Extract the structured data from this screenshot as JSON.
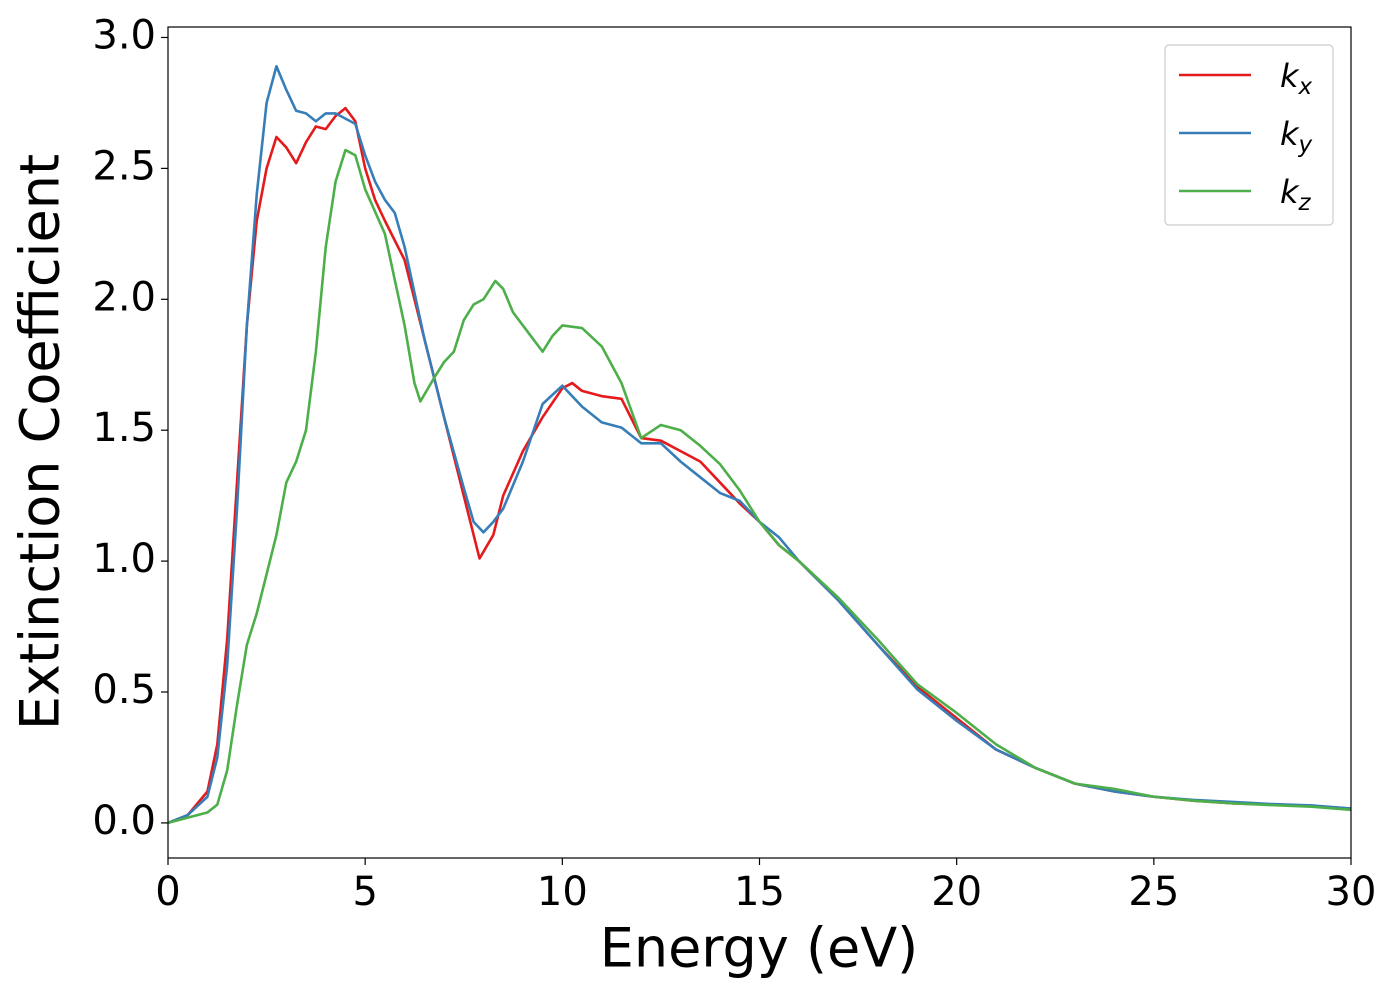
{
  "chart_data": {
    "type": "line",
    "xlabel": "Energy (eV)",
    "ylabel": "Extinction Coefficient",
    "xlim": [
      0,
      30
    ],
    "ylim": [
      -0.134,
      3.04
    ],
    "xticks": [
      0,
      5,
      10,
      15,
      20,
      25,
      30
    ],
    "yticks": [
      {
        "value": 0,
        "label": "0.0"
      },
      {
        "value": 0.5,
        "label": "0.5"
      },
      {
        "value": 1,
        "label": "1.0"
      },
      {
        "value": 1.5,
        "label": "1.5"
      },
      {
        "value": 2,
        "label": "2.0"
      },
      {
        "value": 2.5,
        "label": "2.5"
      },
      {
        "value": 3,
        "label": "3.0"
      }
    ],
    "legend": "upper right",
    "series": [
      {
        "name": "kx",
        "color": "#e41a1c",
        "x": [
          0,
          0.5,
          1,
          1.25,
          1.5,
          1.75,
          2,
          2.25,
          2.5,
          2.75,
          3,
          3.25,
          3.5,
          3.75,
          4,
          4.25,
          4.5,
          4.75,
          5,
          5.25,
          5.5,
          6,
          6.5,
          7,
          7.5,
          7.9,
          8.25,
          8.5,
          9,
          9.5,
          10,
          10.25,
          10.5,
          11,
          11.5,
          12,
          12.5,
          13,
          13.5,
          14,
          14.5,
          15,
          15.5,
          16,
          17,
          18,
          19,
          20,
          21,
          22,
          23,
          24,
          25,
          26,
          27,
          28,
          29,
          30
        ],
        "values": [
          0,
          0.03,
          0.12,
          0.3,
          0.7,
          1.3,
          1.9,
          2.3,
          2.5,
          2.62,
          2.58,
          2.52,
          2.6,
          2.66,
          2.65,
          2.7,
          2.73,
          2.68,
          2.5,
          2.38,
          2.3,
          2.15,
          1.85,
          1.55,
          1.25,
          1.01,
          1.1,
          1.25,
          1.42,
          1.55,
          1.66,
          1.68,
          1.65,
          1.63,
          1.62,
          1.47,
          1.46,
          1.42,
          1.38,
          1.3,
          1.22,
          1.15,
          1.06,
          1.0,
          0.85,
          0.68,
          0.52,
          0.4,
          0.28,
          0.21,
          0.15,
          0.12,
          0.1,
          0.085,
          0.075,
          0.07,
          0.065,
          0.055
        ]
      },
      {
        "name": "ky",
        "color": "#377eb8",
        "x": [
          0,
          0.5,
          1,
          1.25,
          1.5,
          1.75,
          2,
          2.25,
          2.5,
          2.75,
          3,
          3.25,
          3.5,
          3.75,
          4,
          4.25,
          4.5,
          4.75,
          5,
          5.25,
          5.5,
          5.75,
          6,
          6.5,
          7,
          7.5,
          7.75,
          8,
          8.25,
          8.5,
          9,
          9.5,
          10,
          10.5,
          11,
          11.5,
          12,
          12.5,
          13,
          13.5,
          14,
          14.5,
          15,
          15.5,
          16,
          17,
          18,
          19,
          20,
          21,
          22,
          23,
          24,
          25,
          26,
          27,
          28,
          29,
          30
        ],
        "values": [
          0,
          0.03,
          0.1,
          0.25,
          0.6,
          1.2,
          1.9,
          2.4,
          2.75,
          2.89,
          2.8,
          2.72,
          2.71,
          2.68,
          2.71,
          2.71,
          2.69,
          2.67,
          2.55,
          2.45,
          2.38,
          2.33,
          2.2,
          1.85,
          1.55,
          1.28,
          1.15,
          1.11,
          1.15,
          1.2,
          1.38,
          1.6,
          1.67,
          1.59,
          1.53,
          1.51,
          1.45,
          1.45,
          1.38,
          1.32,
          1.26,
          1.23,
          1.15,
          1.09,
          1.0,
          0.85,
          0.68,
          0.51,
          0.39,
          0.28,
          0.21,
          0.15,
          0.12,
          0.1,
          0.088,
          0.08,
          0.072,
          0.067,
          0.055
        ]
      },
      {
        "name": "kz",
        "color": "#4daf4a",
        "x": [
          0,
          0.5,
          1,
          1.25,
          1.5,
          1.75,
          2,
          2.25,
          2.5,
          2.75,
          3,
          3.25,
          3.5,
          3.75,
          4,
          4.25,
          4.5,
          4.75,
          5,
          5.5,
          6,
          6.25,
          6.4,
          6.75,
          7,
          7.25,
          7.5,
          7.75,
          8,
          8.3,
          8.5,
          8.75,
          9,
          9.25,
          9.5,
          9.75,
          10,
          10.5,
          11,
          11.5,
          12,
          12.5,
          13,
          13.5,
          14,
          14.5,
          15,
          15.5,
          16,
          17,
          18,
          19,
          20,
          21,
          22,
          23,
          24,
          25,
          26,
          27,
          28,
          29,
          30
        ],
        "values": [
          0,
          0.02,
          0.04,
          0.07,
          0.2,
          0.45,
          0.68,
          0.8,
          0.95,
          1.1,
          1.3,
          1.38,
          1.5,
          1.8,
          2.2,
          2.45,
          2.57,
          2.55,
          2.42,
          2.25,
          1.9,
          1.68,
          1.61,
          1.7,
          1.76,
          1.8,
          1.92,
          1.98,
          2.0,
          2.07,
          2.04,
          1.95,
          1.9,
          1.85,
          1.8,
          1.86,
          1.9,
          1.89,
          1.82,
          1.68,
          1.47,
          1.52,
          1.5,
          1.44,
          1.37,
          1.27,
          1.15,
          1.06,
          1.0,
          0.86,
          0.7,
          0.53,
          0.42,
          0.3,
          0.21,
          0.15,
          0.13,
          0.1,
          0.085,
          0.075,
          0.068,
          0.062,
          0.05
        ]
      }
    ]
  }
}
